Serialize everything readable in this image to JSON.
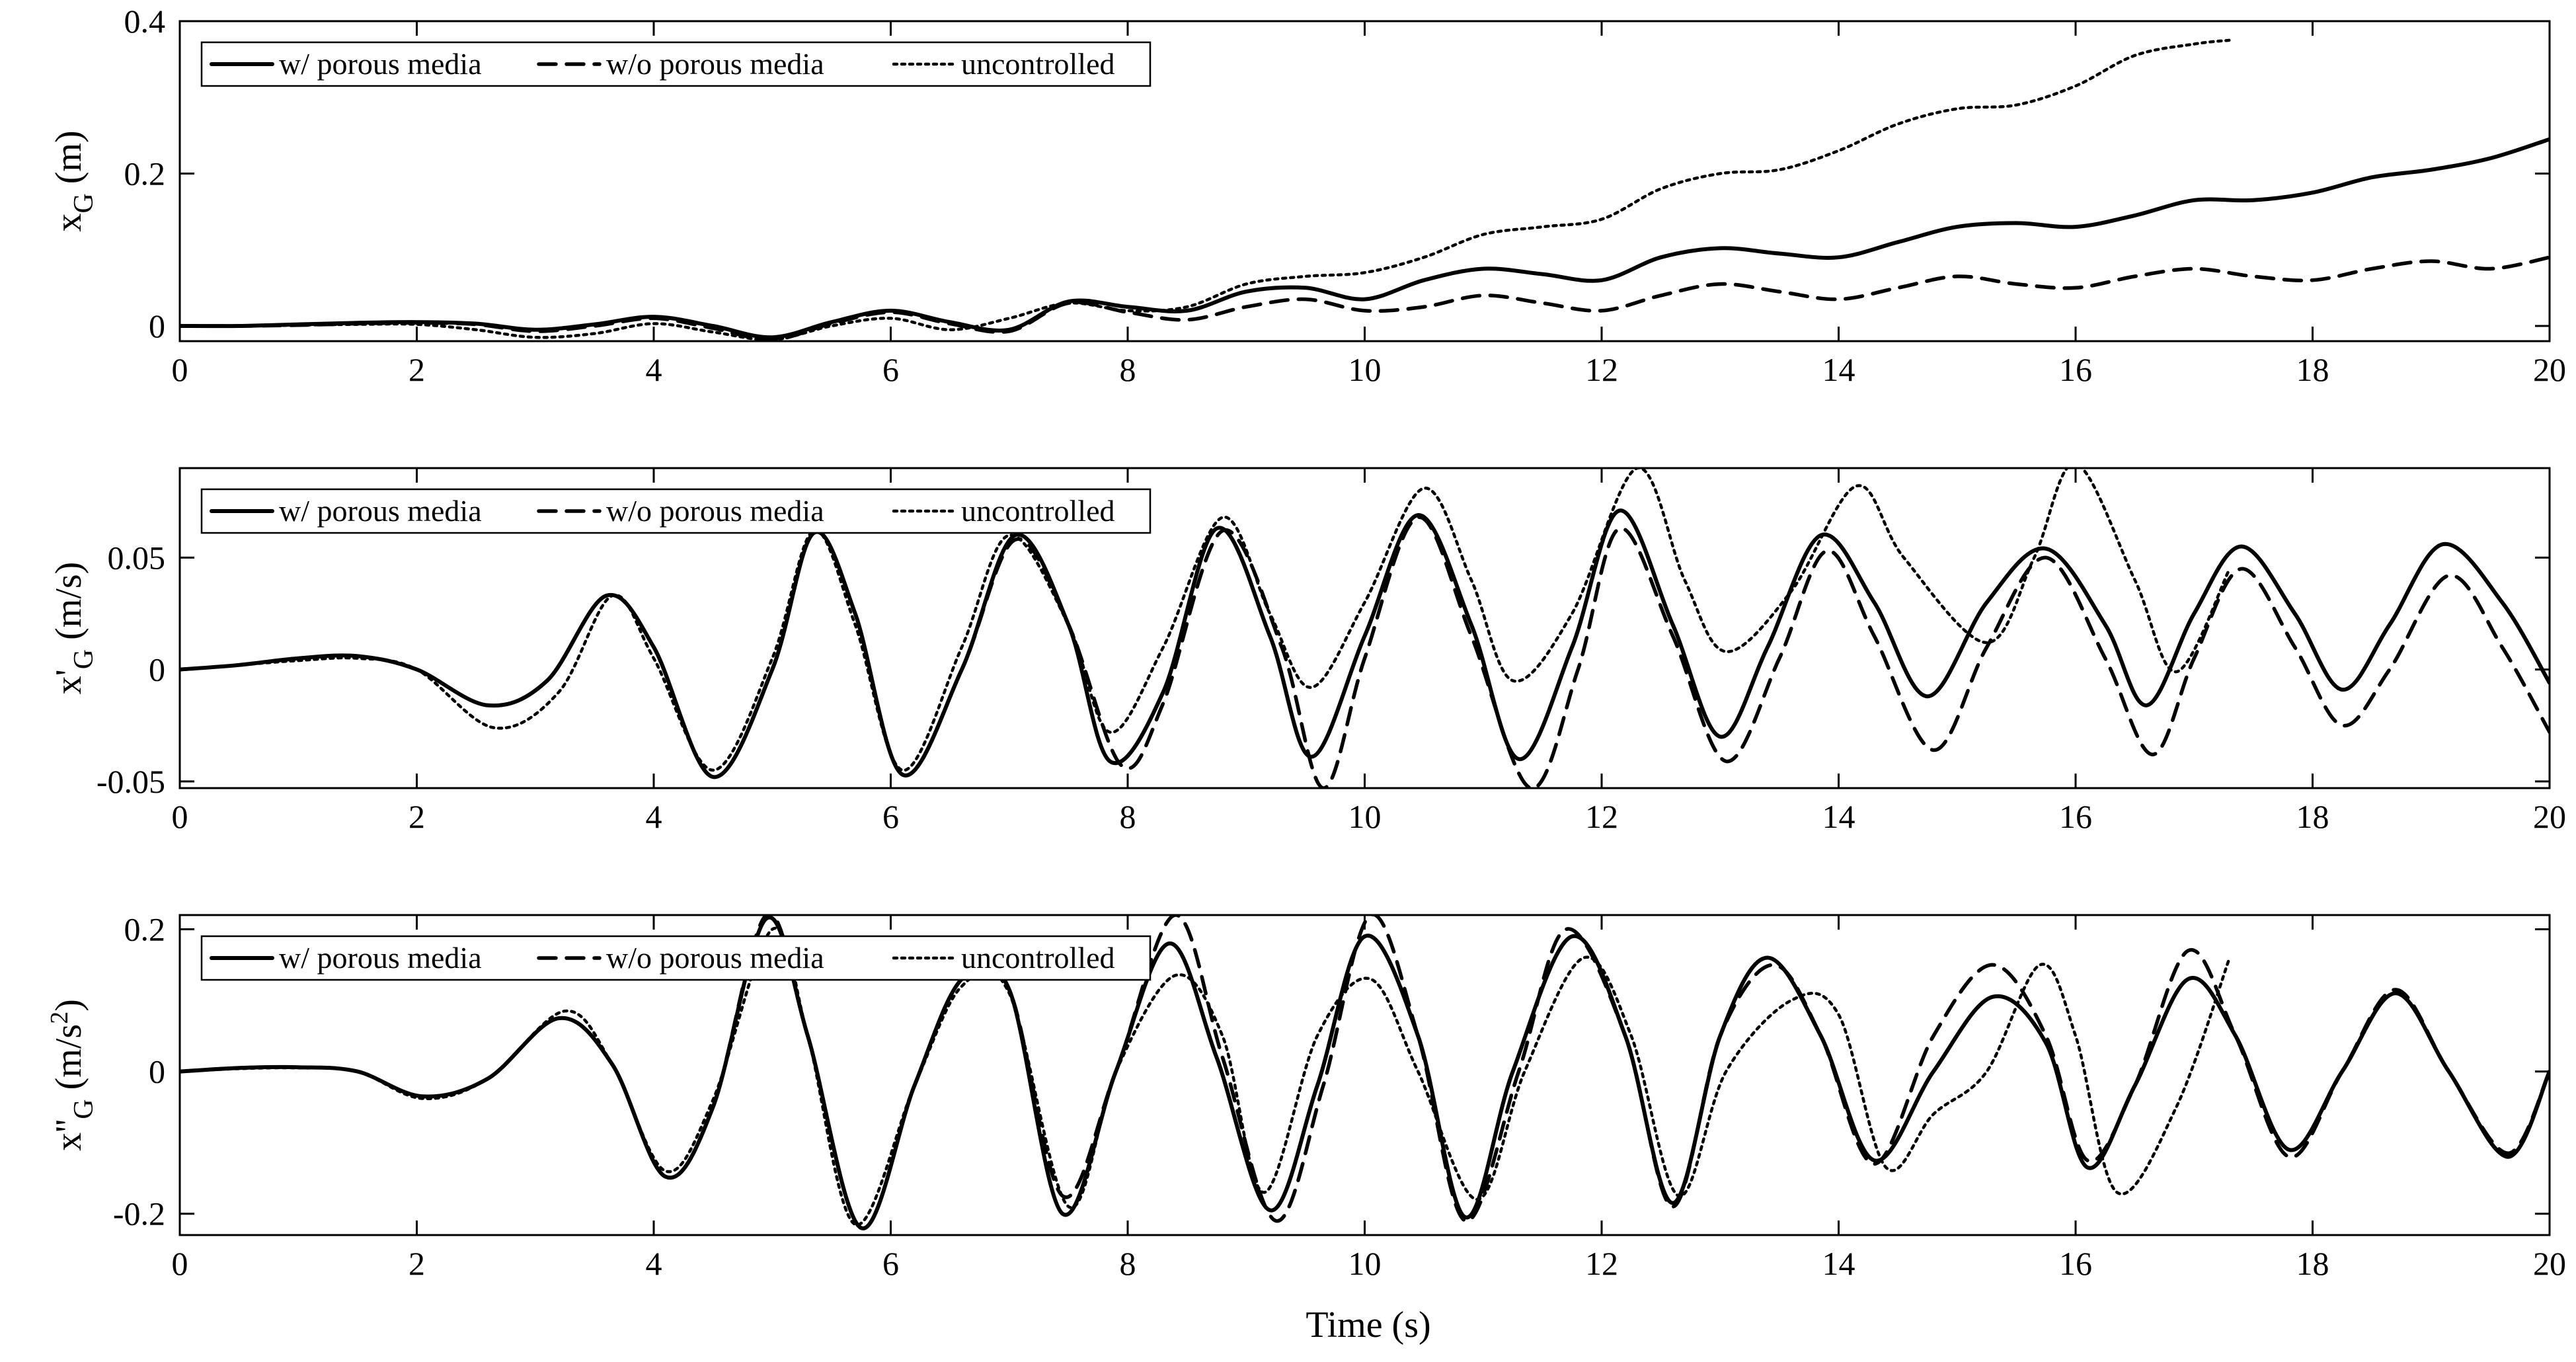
{
  "figure": {
    "xlabel": "Time (s)",
    "legend": [
      {
        "key": "with",
        "label": "w/ porous media"
      },
      {
        "key": "without",
        "label": "w/o porous media"
      },
      {
        "key": "unc",
        "label": "uncontrolled"
      }
    ]
  },
  "chart_data": [
    {
      "type": "line",
      "title": "",
      "ylabel": {
        "base": "x",
        "sup": "",
        "sub": "G",
        "unit": "(m)"
      },
      "xlabel": "",
      "xlim": [
        0,
        20
      ],
      "ylim": [
        -0.02,
        0.4
      ],
      "xticks": [
        0,
        2,
        4,
        6,
        8,
        10,
        12,
        14,
        16,
        18,
        20
      ],
      "xtick_labels": [
        "0",
        "2",
        "4",
        "6",
        "8",
        "10",
        "12",
        "14",
        "16",
        "18",
        "20"
      ],
      "yticks": [
        0,
        0.2,
        0.4
      ],
      "ytick_labels": [
        "0",
        "0.2",
        "0.4"
      ],
      "legend_position": "top-left",
      "series": [
        {
          "name": "w/ porous media",
          "style": "solid",
          "x": [
            0,
            0.5,
            1,
            1.5,
            2,
            2.5,
            3,
            3.5,
            4,
            4.5,
            5,
            5.5,
            6,
            6.5,
            7,
            7.5,
            8,
            8.5,
            9,
            9.5,
            10,
            10.5,
            11,
            11.5,
            12,
            12.5,
            13,
            13.5,
            14,
            14.5,
            15,
            15.5,
            16,
            16.5,
            17,
            17.5,
            18,
            18.5,
            19,
            19.5,
            20
          ],
          "y": [
            0,
            0,
            0.002,
            0.004,
            0.005,
            0.003,
            -0.005,
            0.002,
            0.012,
            0,
            -0.015,
            0.005,
            0.02,
            0.005,
            -0.005,
            0.032,
            0.025,
            0.02,
            0.045,
            0.05,
            0.035,
            0.06,
            0.075,
            0.068,
            0.06,
            0.09,
            0.102,
            0.095,
            0.09,
            0.11,
            0.13,
            0.135,
            0.13,
            0.145,
            0.165,
            0.165,
            0.175,
            0.195,
            0.205,
            0.22,
            0.245
          ]
        },
        {
          "name": "w/o porous media",
          "style": "dashed",
          "x": [
            0,
            0.5,
            1,
            1.5,
            2,
            2.5,
            3,
            3.5,
            4,
            4.5,
            5,
            5.5,
            6,
            6.5,
            7,
            7.5,
            8,
            8.5,
            9,
            9.5,
            10,
            10.5,
            11,
            11.5,
            12,
            12.5,
            13,
            13.5,
            14,
            14.5,
            15,
            15.5,
            16,
            16.5,
            17,
            17.5,
            18,
            18.5,
            19,
            19.5,
            20
          ],
          "y": [
            0,
            0,
            0.001,
            0.003,
            0.004,
            0.002,
            -0.007,
            0,
            0.01,
            -0.003,
            -0.018,
            0.003,
            0.018,
            0.003,
            -0.007,
            0.03,
            0.018,
            0.008,
            0.025,
            0.035,
            0.02,
            0.025,
            0.04,
            0.03,
            0.02,
            0.04,
            0.055,
            0.045,
            0.035,
            0.05,
            0.065,
            0.055,
            0.05,
            0.065,
            0.075,
            0.065,
            0.06,
            0.075,
            0.085,
            0.075,
            0.09
          ]
        },
        {
          "name": "uncontrolled",
          "style": "dotted",
          "x": [
            0,
            0.5,
            1,
            1.5,
            2,
            2.5,
            3,
            3.5,
            4,
            4.5,
            5,
            5.5,
            6,
            6.5,
            7,
            7.5,
            8,
            8.5,
            9,
            9.5,
            10,
            10.5,
            11,
            11.5,
            12,
            12.5,
            13,
            13.5,
            14,
            14.5,
            15,
            15.5,
            16,
            16.5,
            17,
            17.3
          ],
          "y": [
            0,
            0,
            0.001,
            0.002,
            0.002,
            -0.005,
            -0.015,
            -0.01,
            0.003,
            -0.008,
            -0.018,
            0,
            0.01,
            -0.005,
            0.01,
            0.03,
            0.02,
            0.025,
            0.055,
            0.065,
            0.07,
            0.09,
            0.12,
            0.13,
            0.14,
            0.18,
            0.2,
            0.205,
            0.23,
            0.265,
            0.285,
            0.29,
            0.315,
            0.355,
            0.37,
            0.375
          ]
        }
      ]
    },
    {
      "type": "line",
      "title": "",
      "ylabel": {
        "base": "x",
        "sup": "'",
        "sub": "G",
        "unit": "(m/s)"
      },
      "xlabel": "",
      "xlim": [
        0,
        20
      ],
      "ylim": [
        -0.053,
        0.09
      ],
      "xticks": [
        0,
        2,
        4,
        6,
        8,
        10,
        12,
        14,
        16,
        18,
        20
      ],
      "xtick_labels": [
        "0",
        "2",
        "4",
        "6",
        "8",
        "10",
        "12",
        "14",
        "16",
        "18",
        "20"
      ],
      "yticks": [
        -0.05,
        0,
        0.05
      ],
      "ytick_labels": [
        "-0.05",
        "0",
        "0.05"
      ],
      "legend_position": "top-left",
      "series": [
        {
          "name": "w/ porous media",
          "style": "solid",
          "x": [
            0,
            0.5,
            1,
            1.5,
            2,
            2.6,
            3.1,
            3.6,
            4.0,
            4.5,
            5.0,
            5.35,
            5.7,
            6.1,
            6.6,
            7.05,
            7.5,
            7.85,
            8.3,
            8.75,
            9.2,
            9.55,
            10.0,
            10.45,
            10.9,
            11.3,
            11.75,
            12.15,
            12.6,
            13.0,
            13.4,
            13.85,
            14.3,
            14.75,
            15.25,
            15.75,
            16.25,
            16.6,
            17.0,
            17.4,
            17.85,
            18.25,
            18.65,
            19.1,
            19.6,
            20
          ],
          "y": [
            0,
            0.002,
            0.005,
            0.006,
            0,
            -0.016,
            -0.005,
            0.033,
            0.01,
            -0.048,
            0,
            0.061,
            0.025,
            -0.047,
            0,
            0.06,
            0.02,
            -0.041,
            -0.01,
            0.063,
            0.015,
            -0.039,
            0.015,
            0.069,
            0.02,
            -0.04,
            0.01,
            0.071,
            0.02,
            -0.03,
            0.01,
            0.06,
            0.03,
            -0.012,
            0.03,
            0.054,
            0.02,
            -0.016,
            0.025,
            0.055,
            0.025,
            -0.009,
            0.02,
            0.056,
            0.03,
            -0.006
          ]
        },
        {
          "name": "w/o porous media",
          "style": "dashed",
          "x": [
            0,
            0.5,
            1,
            1.5,
            2,
            2.6,
            3.1,
            3.6,
            4.0,
            4.5,
            5.0,
            5.35,
            5.7,
            6.1,
            6.6,
            7.05,
            7.5,
            7.95,
            8.3,
            8.8,
            9.3,
            9.65,
            10.0,
            10.45,
            10.9,
            11.4,
            11.8,
            12.15,
            12.6,
            13.05,
            13.5,
            13.9,
            14.3,
            14.8,
            15.25,
            15.75,
            16.25,
            16.65,
            17.0,
            17.4,
            17.85,
            18.25,
            18.65,
            19.15,
            19.6,
            20
          ],
          "y": [
            0,
            0.002,
            0.005,
            0.006,
            0,
            -0.016,
            -0.005,
            0.033,
            0.01,
            -0.048,
            0,
            0.061,
            0.025,
            -0.047,
            0,
            0.058,
            0.02,
            -0.043,
            -0.015,
            0.062,
            0.01,
            -0.053,
            0.005,
            0.068,
            0.015,
            -0.053,
            0.0,
            0.063,
            0.015,
            -0.041,
            0.005,
            0.053,
            0.015,
            -0.036,
            0.01,
            0.05,
            0.005,
            -0.038,
            0.005,
            0.045,
            0.01,
            -0.025,
            0.0,
            0.042,
            0.01,
            -0.028
          ]
        },
        {
          "name": "uncontrolled",
          "style": "dotted",
          "x": [
            0,
            0.5,
            1,
            1.5,
            2,
            2.65,
            3.2,
            3.65,
            4.0,
            4.5,
            5.0,
            5.35,
            5.7,
            6.1,
            6.6,
            7.0,
            7.5,
            7.85,
            8.3,
            8.8,
            9.2,
            9.55,
            10.0,
            10.5,
            10.9,
            11.25,
            11.75,
            12.3,
            12.7,
            13.05,
            13.6,
            14.15,
            14.55,
            15.25,
            15.65,
            16.0,
            16.5,
            16.85,
            17.3
          ],
          "y": [
            0,
            0.002,
            0.004,
            0.005,
            0,
            -0.026,
            -0.01,
            0.033,
            0.005,
            -0.045,
            0.005,
            0.062,
            0.02,
            -0.045,
            0.01,
            0.06,
            0.02,
            -0.028,
            0.01,
            0.068,
            0.025,
            -0.008,
            0.03,
            0.081,
            0.04,
            -0.005,
            0.025,
            0.09,
            0.04,
            0.008,
            0.035,
            0.082,
            0.05,
            0.012,
            0.05,
            0.092,
            0.04,
            -0.001,
            0.045
          ]
        }
      ]
    },
    {
      "type": "line",
      "title": "",
      "ylabel": {
        "base": "x",
        "sup": "''",
        "sub": "G",
        "unit": "(m/s",
        "unit_sup": "2",
        "unit_end": ")"
      },
      "xlabel": "Time (s)",
      "xlim": [
        0,
        20
      ],
      "ylim": [
        -0.23,
        0.22
      ],
      "xticks": [
        0,
        2,
        4,
        6,
        8,
        10,
        12,
        14,
        16,
        18,
        20
      ],
      "xtick_labels": [
        "0",
        "2",
        "4",
        "6",
        "8",
        "10",
        "12",
        "14",
        "16",
        "18",
        "20"
      ],
      "yticks": [
        -0.2,
        0,
        0.2
      ],
      "ytick_labels": [
        "-0.2",
        "0",
        "0.2"
      ],
      "legend_position": "top-left",
      "series": [
        {
          "name": "w/ porous media",
          "style": "solid",
          "x": [
            0,
            0.5,
            1,
            1.5,
            2.05,
            2.6,
            3.2,
            3.65,
            4.1,
            4.5,
            4.95,
            5.3,
            5.75,
            6.2,
            6.6,
            7.0,
            7.45,
            7.9,
            8.35,
            8.75,
            9.2,
            9.6,
            10.0,
            10.45,
            10.85,
            11.25,
            11.75,
            12.2,
            12.6,
            13.0,
            13.4,
            13.85,
            14.3,
            14.8,
            15.3,
            15.75,
            16.1,
            16.5,
            16.95,
            17.35,
            17.8,
            18.25,
            18.7,
            19.15,
            19.65,
            20
          ],
          "y": [
            0,
            0.005,
            0.006,
            0.0,
            -0.035,
            -0.01,
            0.075,
            0.01,
            -0.148,
            -0.05,
            0.215,
            0.05,
            -0.22,
            -0.02,
            0.13,
            0.115,
            -0.2,
            0.0,
            0.18,
            0.02,
            -0.195,
            -0.02,
            0.19,
            0.05,
            -0.205,
            0.0,
            0.19,
            0.05,
            -0.185,
            0.05,
            0.16,
            0.05,
            -0.125,
            0.0,
            0.105,
            0.04,
            -0.135,
            -0.02,
            0.13,
            0.05,
            -0.11,
            0.0,
            0.11,
            0.0,
            -0.12,
            0.0
          ]
        },
        {
          "name": "w/o porous media",
          "style": "dashed",
          "x": [
            0,
            0.5,
            1,
            1.5,
            2.05,
            2.6,
            3.2,
            3.65,
            4.1,
            4.5,
            4.95,
            5.3,
            5.75,
            6.2,
            6.6,
            7.0,
            7.45,
            7.9,
            8.4,
            8.8,
            9.25,
            9.65,
            10.05,
            10.45,
            10.85,
            11.3,
            11.7,
            12.2,
            12.6,
            13.0,
            13.45,
            13.85,
            14.3,
            14.8,
            15.3,
            15.75,
            16.1,
            16.5,
            16.95,
            17.35,
            17.8,
            18.25,
            18.7,
            19.15,
            19.65,
            20
          ],
          "y": [
            0,
            0.005,
            0.006,
            0.0,
            -0.035,
            -0.01,
            0.075,
            0.01,
            -0.148,
            -0.05,
            0.22,
            0.05,
            -0.22,
            -0.02,
            0.13,
            0.115,
            -0.175,
            0.0,
            0.22,
            0.02,
            -0.21,
            -0.02,
            0.22,
            0.05,
            -0.21,
            0.0,
            0.2,
            0.05,
            -0.19,
            0.05,
            0.15,
            0.05,
            -0.13,
            0.05,
            0.15,
            0.05,
            -0.125,
            -0.02,
            0.17,
            0.05,
            -0.12,
            0.0,
            0.115,
            0.0,
            -0.115,
            0.0
          ]
        },
        {
          "name": "uncontrolled",
          "style": "dotted",
          "x": [
            0,
            0.5,
            1,
            1.5,
            2.05,
            2.6,
            3.25,
            3.65,
            4.1,
            4.5,
            5.0,
            5.3,
            5.7,
            6.2,
            6.6,
            7.0,
            7.5,
            7.9,
            8.4,
            8.8,
            9.15,
            9.6,
            10.05,
            10.45,
            10.95,
            11.35,
            11.85,
            12.25,
            12.65,
            13.05,
            13.6,
            14.0,
            14.4,
            14.8,
            15.25,
            15.7,
            16.0,
            16.35,
            16.85,
            17.3
          ],
          "y": [
            0,
            0.004,
            0.005,
            0.0,
            -0.038,
            -0.01,
            0.085,
            0.01,
            -0.14,
            -0.04,
            0.2,
            0.05,
            -0.215,
            -0.02,
            0.12,
            0.11,
            -0.19,
            0.0,
            0.135,
            0.05,
            -0.17,
            0.05,
            0.13,
            0.0,
            -0.18,
            0.0,
            0.16,
            0.05,
            -0.175,
            0.0,
            0.1,
            0.08,
            -0.135,
            -0.06,
            0.0,
            0.15,
            0.05,
            -0.17,
            -0.05,
            0.16
          ]
        }
      ]
    }
  ]
}
